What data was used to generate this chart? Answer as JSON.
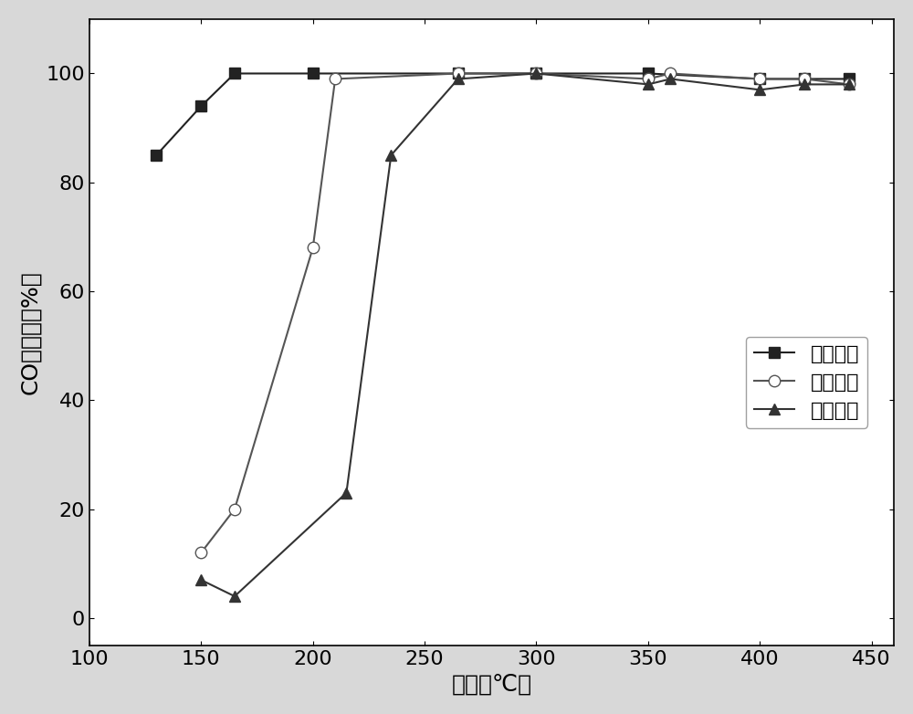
{
  "series1": {
    "label": "实施例一",
    "x": [
      130,
      150,
      165,
      200,
      265,
      300,
      350,
      400,
      420,
      440
    ],
    "y": [
      85,
      94,
      100,
      100,
      100,
      100,
      100,
      99,
      99,
      99
    ],
    "marker": "s",
    "color": "#222222",
    "markerface": "#222222"
  },
  "series2": {
    "label": "实施例二",
    "x": [
      150,
      165,
      200,
      210,
      265,
      300,
      350,
      360,
      400,
      420,
      440
    ],
    "y": [
      12,
      20,
      68,
      99,
      100,
      100,
      99,
      100,
      99,
      99,
      98
    ],
    "marker": "o",
    "color": "#555555",
    "markerface": "white"
  },
  "series3": {
    "label": "实施例三",
    "x": [
      150,
      165,
      215,
      235,
      265,
      300,
      350,
      360,
      400,
      420,
      440
    ],
    "y": [
      7,
      4,
      23,
      85,
      99,
      100,
      98,
      99,
      97,
      98,
      98
    ],
    "marker": "^",
    "color": "#333333",
    "markerface": "#333333"
  },
  "xlabel": "温度（℃）",
  "ylabel": "CO转化率（%）",
  "xlim": [
    100,
    460
  ],
  "ylim": [
    -5,
    110
  ],
  "xticks": [
    100,
    150,
    200,
    250,
    300,
    350,
    400,
    450
  ],
  "yticks": [
    0,
    20,
    40,
    60,
    80,
    100
  ],
  "bg_color": "#d8d8d8",
  "plot_bg_color": "#ffffff",
  "font_size": 16,
  "axis_font_size": 18,
  "marker_size": 9,
  "line_width": 1.5
}
